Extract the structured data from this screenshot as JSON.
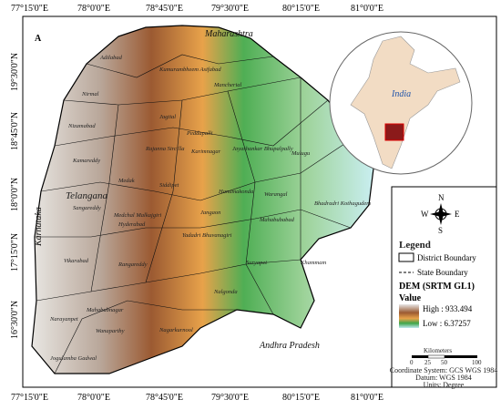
{
  "panel_label": "A",
  "longitudes": [
    "77°15'0\"E",
    "78°0'0\"E",
    "78°45'0\"E",
    "79°30'0\"E",
    "80°15'0\"E",
    "81°0'0\"E"
  ],
  "latitudes": [
    "19°30'0\"N",
    "18°45'0\"N",
    "18°0'0\"N",
    "17°15'0\"N",
    "16°30'0\"N"
  ],
  "neighbors": [
    "Maharashtra",
    "Karnataka",
    "Andhra Pradesh"
  ],
  "state_label": "Telangana",
  "districts": [
    "Adilabad",
    "Kumurambheem Asifabad",
    "Nirmal",
    "Mancherial",
    "Nizamabad",
    "Jagtial",
    "Peddapalli",
    "Jayashankar Bhupalpally",
    "Mulugu",
    "Karimnagar",
    "Rajanna Sircilla",
    "Kamareddy",
    "Siddipet",
    "Medak",
    "Sangareddy",
    "Medchal Malkajgiri",
    "Hyderabad",
    "Yadadri Bhuvanagiri",
    "Jangaon",
    "Hanumakonda",
    "Warangal",
    "Mahabubabad",
    "Bhadradri Kothagudem",
    "Vikarabad",
    "Rangareddy",
    "Khammam",
    "Suryapet",
    "Nalgonda",
    "Narayanpet",
    "Mahabubnagar",
    "Wanaparthy",
    "Nagarkurnool",
    "Jogulamba Gadwal"
  ],
  "inset": {
    "label": "India"
  },
  "compass": [
    "N",
    "E",
    "S",
    "W"
  ],
  "legend": {
    "title": "Legend",
    "district_boundary": "District Boundary",
    "state_boundary": "State Boundary",
    "dem_title": "DEM (SRTM GL1)",
    "value_title": "Value",
    "high": "High : 933.494",
    "low": "Low : 6.37257"
  },
  "scale": {
    "title": "Kilometers",
    "ticks": [
      "0",
      "25",
      "50",
      "100"
    ]
  },
  "info": [
    "Coordinate System: GCS WGS 1984",
    "Datum: WGS 1984",
    "Units: Degree"
  ]
}
